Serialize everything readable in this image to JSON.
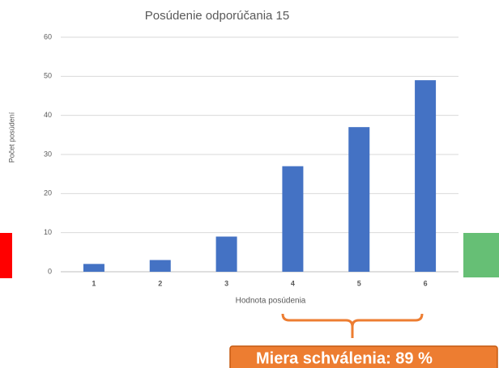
{
  "chart_data": {
    "type": "bar",
    "title": "Posúdenie odporúčania 15",
    "x_label": "Hodnota posúdenia",
    "y_label": "Počet posúdení",
    "categories": [
      "1",
      "2",
      "3",
      "4",
      "5",
      "6"
    ],
    "values": [
      2,
      3,
      9,
      27,
      37,
      49
    ],
    "color": "#4472c4",
    "ylim": [
      0,
      60
    ],
    "yticks": [
      0,
      10,
      20,
      30,
      40,
      50,
      60
    ],
    "grid": true,
    "annotation": "Miera schválenia: 89 %"
  }
}
